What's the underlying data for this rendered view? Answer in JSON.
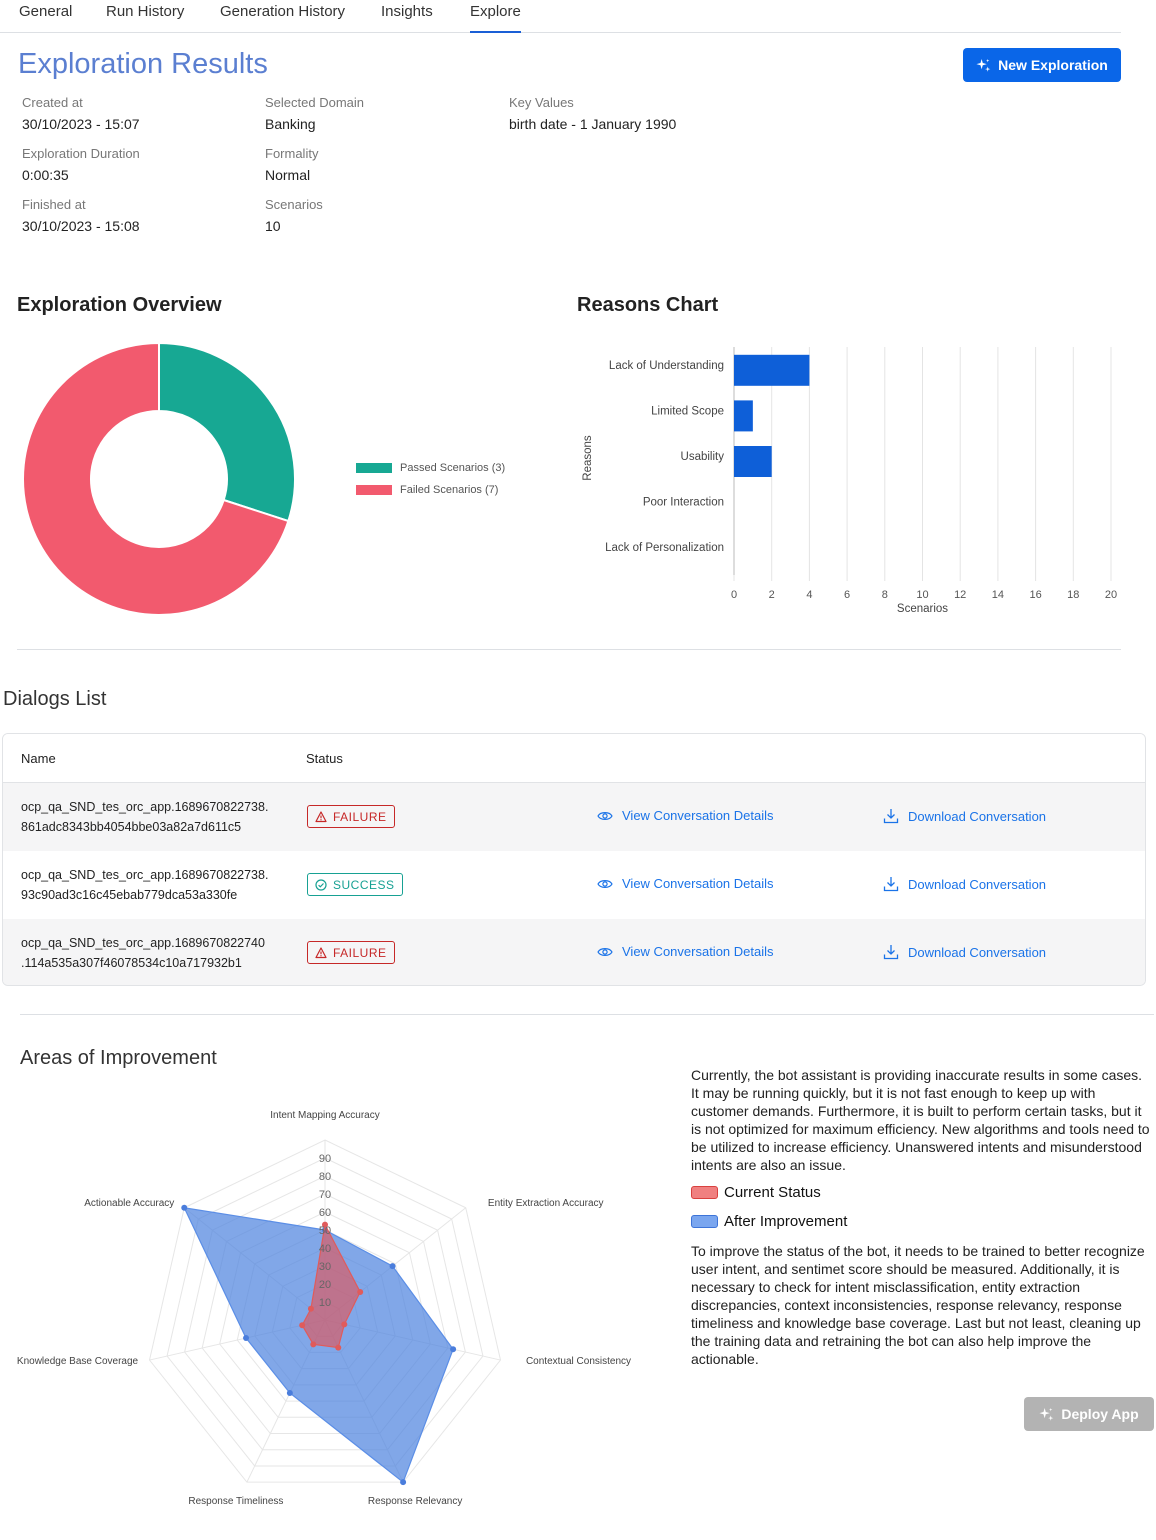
{
  "tabs": [
    "General",
    "Run History",
    "Generation History",
    "Insights",
    "Explore"
  ],
  "header": {
    "title": "Exploration Results",
    "new_button": "New Exploration"
  },
  "meta": {
    "created_label": "Created at",
    "created_value": "30/10/2023 - 15:07",
    "duration_label": "Exploration Duration",
    "duration_value": "0:00:35",
    "finished_label": "Finished at",
    "finished_value": "30/10/2023 - 15:08",
    "domain_label": "Selected Domain",
    "domain_value": "Banking",
    "formality_label": "Formality",
    "formality_value": "Normal",
    "scenarios_label": "Scenarios",
    "scenarios_value": "10",
    "key_values_label": "Key Values",
    "key_values_value": "birth date - 1 January 1990"
  },
  "overview": {
    "title": "Exploration Overview"
  },
  "reasons": {
    "title": "Reasons Chart"
  },
  "dialogs": {
    "title": "Dialogs List",
    "col_name": "Name",
    "col_status": "Status",
    "view_label": "View Conversation Details",
    "download_label": "Download Conversation",
    "rows": [
      {
        "name1": "ocp_qa_SND_tes_orc_app.1689670822738.",
        "name2": "861adc8343bb4054bbe03a82a7d611c5",
        "status": "FAILURE"
      },
      {
        "name1": "ocp_qa_SND_tes_orc_app.1689670822738.",
        "name2": "93c90ad3c16c45ebab779dca53a330fe",
        "status": "SUCCESS"
      },
      {
        "name1": "ocp_qa_SND_tes_orc_app.1689670822740",
        "name2": ".114a535a307f46078534c10a717932b1",
        "status": "FAILURE"
      }
    ]
  },
  "improvement": {
    "title": "Areas of Improvement",
    "paragraph1": "Currently, the bot assistant is providing inaccurate results in some cases. It may be running quickly, but it is not fast enough to keep up with customer demands. Furthermore, it is built to perform certain tasks, but it is not optimized for maximum efficiency. New algorithms and tools need to be utilized to increase efficiency. Unanswered intents and misunderstood intents are also an issue.",
    "paragraph2": "To improve the status of the bot, it needs to be trained to better recognize user intent, and sentimet score should be measured. Additionally, it is necessary to check for intent misclassification, entity extraction discrepancies, context inconsistencies, response relevancy, response timeliness and knowledge base coverage. Last but not least, cleaning up the training data and retraining the bot can also help improve the actionable.",
    "deploy_button": "Deploy App"
  },
  "colors": {
    "accent": "#0a66e8",
    "passed": "#17a893",
    "failed": "#f25a6e",
    "current": "#e05b5b",
    "after": "#5b8ee6"
  },
  "chart_data": [
    {
      "type": "pie",
      "categories": [
        "Passed Scenarios (3)",
        "Failed Scenarios (7)"
      ],
      "values": [
        3,
        7
      ],
      "donut": true,
      "legend": "right"
    },
    {
      "type": "bar",
      "orientation": "horizontal",
      "categories": [
        "Lack of Understanding",
        "Limited Scope",
        "Usability",
        "Poor Interaction",
        "Lack of Personalization"
      ],
      "values": [
        4,
        1,
        2,
        0,
        0
      ],
      "xlabel": "Scenarios",
      "ylabel": "Reasons",
      "xlim": [
        0,
        20
      ],
      "xticks": [
        0,
        2,
        4,
        6,
        8,
        10,
        12,
        14,
        16,
        18,
        20
      ],
      "grid": true
    },
    {
      "type": "radar",
      "axes": [
        "Intent Mapping Accuracy",
        "Entity Extraction Accuracy",
        "Contextual Consistency",
        "Response Relevancy",
        "Response Timeliness",
        "Knowledge Base Coverage",
        "Actionable Accuracy"
      ],
      "rlim": [
        0,
        100
      ],
      "ticks": [
        10,
        20,
        30,
        40,
        50,
        60,
        70,
        80,
        90
      ],
      "series": [
        {
          "name": "Current Status",
          "values": [
            53,
            25,
            11,
            17,
            15,
            13,
            10
          ]
        },
        {
          "name": "After Improvement",
          "values": [
            50,
            48,
            73,
            100,
            45,
            45,
            100
          ]
        }
      ],
      "legend": "right"
    }
  ]
}
